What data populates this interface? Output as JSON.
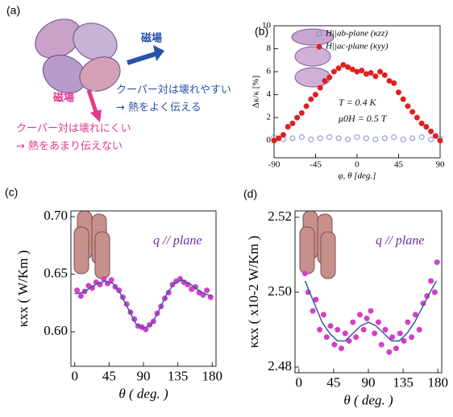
{
  "panel_a": {
    "label": "(a)",
    "field_blue": "磁場",
    "field_pink": "磁場",
    "blue_line1": "クーパー対は壊れやすい",
    "blue_line2": "→ 熱をよく伝える",
    "pink_line1": "クーパー対は壊れにくい",
    "pink_line2": "→ 熱をあまり伝えない"
  },
  "chart_data": [
    {
      "type": "scatter",
      "label": "(b)",
      "xlabel": "φ, θ [deg.]",
      "ylabel": "Δκ/κ [%]",
      "xlim": [
        -90,
        90
      ],
      "xticks": [
        -90,
        -45,
        0,
        45,
        90
      ],
      "ylim": [
        -1.5,
        10
      ],
      "yticks": [
        0,
        2,
        4,
        6,
        8,
        10
      ],
      "legend": "upper right",
      "annotations": [
        "T = 0.4 K",
        "μ0H = 0.5 T"
      ],
      "series": [
        {
          "name": "H||ab-plane (κzz)",
          "color": "#7f8fd6",
          "mode": "markers",
          "filled": false,
          "x": [
            -90,
            -80,
            -70,
            -60,
            -50,
            -40,
            -30,
            -20,
            -10,
            0,
            10,
            20,
            30,
            40,
            50,
            60,
            70,
            80,
            90
          ],
          "values": [
            0.3,
            0.1,
            0.2,
            0.3,
            0.1,
            0.2,
            0.3,
            0.2,
            0.1,
            0.3,
            0.2,
            0.1,
            0.2,
            0.3,
            0.1,
            0.2,
            0.3,
            0.1,
            0.2
          ]
        },
        {
          "name": "H||ac-plane (κyy)",
          "color": "#e0201f",
          "mode": "markers",
          "filled": true,
          "x": [
            -90,
            -85,
            -80,
            -75,
            -70,
            -65,
            -60,
            -55,
            -50,
            -45,
            -40,
            -35,
            -30,
            -25,
            -20,
            -15,
            -10,
            -5,
            0,
            5,
            10,
            15,
            20,
            25,
            30,
            35,
            40,
            45,
            50,
            55,
            60,
            65,
            70,
            75,
            80,
            85,
            90
          ],
          "values": [
            0,
            0.2,
            0.5,
            1.2,
            1.5,
            2.0,
            2.4,
            3.0,
            3.6,
            4.0,
            4.6,
            5.2,
            5.5,
            6.0,
            6.3,
            6.6,
            6.4,
            6.2,
            6.0,
            6.1,
            5.8,
            5.9,
            5.6,
            6.0,
            5.7,
            5.2,
            5.0,
            4.2,
            3.6,
            3.0,
            2.5,
            2.0,
            1.5,
            1.2,
            0.8,
            0.4,
            0
          ]
        }
      ]
    },
    {
      "type": "scatter",
      "label": "(c)",
      "xlabel": "θ ( deg. )",
      "ylabel": "κxx ( W/Km )",
      "xlim": [
        -5,
        185
      ],
      "xticks": [
        0,
        45,
        90,
        135,
        180
      ],
      "ylim": [
        0.57,
        0.705
      ],
      "yticks": [
        {
          "value": 0.6,
          "label": "0.60"
        },
        0.65,
        {
          "value": 0.7,
          "label": "0.70"
        }
      ],
      "annotations": [
        "q // plane"
      ],
      "series": [
        {
          "color": "#d23fc8",
          "mode": "markers",
          "filled": true,
          "x": [
            3,
            8,
            13,
            18,
            23,
            28,
            33,
            38,
            43,
            48,
            53,
            58,
            63,
            68,
            73,
            78,
            83,
            88,
            93,
            98,
            103,
            108,
            113,
            118,
            123,
            128,
            133,
            138,
            143,
            148,
            153,
            158,
            163,
            168,
            173,
            178
          ],
          "values": [
            0.636,
            0.631,
            0.635,
            0.64,
            0.638,
            0.643,
            0.641,
            0.646,
            0.642,
            0.645,
            0.639,
            0.636,
            0.63,
            0.624,
            0.617,
            0.611,
            0.605,
            0.604,
            0.602,
            0.606,
            0.609,
            0.616,
            0.622,
            0.629,
            0.634,
            0.641,
            0.644,
            0.646,
            0.643,
            0.641,
            0.637,
            0.639,
            0.634,
            0.632,
            0.636,
            0.63
          ]
        },
        {
          "color": "#3a5a9c",
          "mode": "line",
          "x": [
            0,
            10,
            20,
            30,
            40,
            50,
            60,
            70,
            80,
            90,
            100,
            110,
            120,
            130,
            140,
            150,
            160,
            170,
            180
          ],
          "values": [
            0.633,
            0.634,
            0.638,
            0.642,
            0.644,
            0.642,
            0.633,
            0.62,
            0.607,
            0.603,
            0.606,
            0.618,
            0.632,
            0.642,
            0.645,
            0.642,
            0.637,
            0.633,
            0.631
          ]
        }
      ]
    },
    {
      "type": "scatter",
      "label": "(d)",
      "xlabel": "θ ( deg. )",
      "ylabel": "κxx ( x10-2 W/Km )",
      "xlim": [
        -5,
        185
      ],
      "xticks": [
        0,
        45,
        90,
        135,
        180
      ],
      "ylim": [
        2.4785,
        2.5217
      ],
      "yticks": [
        2.48,
        {
          "value": 2.5,
          "label": "2.50"
        },
        2.52
      ],
      "annotations": [
        "q // plane"
      ],
      "series": [
        {
          "color": "#d23fc8",
          "mode": "markers",
          "filled": true,
          "x": [
            8,
            12,
            18,
            22,
            27,
            32,
            36,
            41,
            46,
            50,
            55,
            60,
            65,
            70,
            74,
            79,
            84,
            88,
            93,
            98,
            103,
            107,
            112,
            117,
            121,
            126,
            131,
            136,
            141,
            146,
            151,
            156,
            161,
            166,
            171,
            176,
            179
          ],
          "values": [
            2.505,
            2.5,
            2.495,
            2.498,
            2.49,
            2.494,
            2.488,
            2.491,
            2.486,
            2.49,
            2.485,
            2.489,
            2.487,
            2.492,
            2.488,
            2.494,
            2.49,
            2.493,
            2.495,
            2.489,
            2.492,
            2.486,
            2.49,
            2.484,
            2.488,
            2.485,
            2.489,
            2.487,
            2.492,
            2.488,
            2.494,
            2.49,
            2.497,
            2.499,
            2.503,
            2.5,
            2.508
          ]
        },
        {
          "color": "#3a5a9c",
          "mode": "line",
          "x": [
            8,
            20,
            30,
            40,
            50,
            60,
            70,
            80,
            90,
            100,
            110,
            120,
            130,
            140,
            150,
            160,
            170,
            178
          ],
          "values": [
            2.503,
            2.497,
            2.492,
            2.489,
            2.487,
            2.487,
            2.489,
            2.491,
            2.492,
            2.491,
            2.489,
            2.487,
            2.487,
            2.489,
            2.492,
            2.496,
            2.5,
            2.503
          ]
        }
      ]
    }
  ]
}
